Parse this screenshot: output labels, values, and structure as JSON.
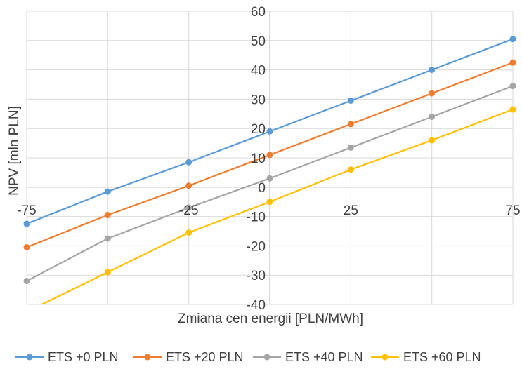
{
  "chart_data": {
    "type": "line",
    "title": "",
    "xlabel": "Zmiana cen energii [PLN/MWh]",
    "ylabel": "NPV [mln PLN]",
    "x": [
      -75,
      -50,
      -25,
      0,
      25,
      50,
      75
    ],
    "xlim": [
      -75,
      75
    ],
    "ylim": [
      -40,
      60
    ],
    "x_tick_labels": [
      "-75",
      "-25",
      "25",
      "75"
    ],
    "x_tick_values": [
      -75,
      -25,
      25,
      75
    ],
    "y_ticks": [
      -40,
      -30,
      -20,
      -10,
      0,
      10,
      20,
      30,
      40,
      50,
      60
    ],
    "grid": true,
    "legend_position": "bottom",
    "series": [
      {
        "name": "ETS +0 PLN",
        "color": "#5B9BD5",
        "values": [
          -12.5,
          -1.5,
          8.5,
          19,
          29.5,
          40,
          50.5
        ]
      },
      {
        "name": "ETS +20 PLN",
        "color": "#ED7D31",
        "values": [
          -20.5,
          -9.5,
          0.5,
          11,
          21.5,
          32,
          42.5
        ]
      },
      {
        "name": "ETS +40 PLN",
        "color": "#A5A5A5",
        "values": [
          -32,
          -17.5,
          -7,
          3,
          13.5,
          24,
          34.5
        ]
      },
      {
        "name": "ETS +60 PLN",
        "color": "#FFC000",
        "values": [
          -42.5,
          -29,
          -15.5,
          -5,
          6,
          16,
          26.5
        ]
      }
    ]
  }
}
